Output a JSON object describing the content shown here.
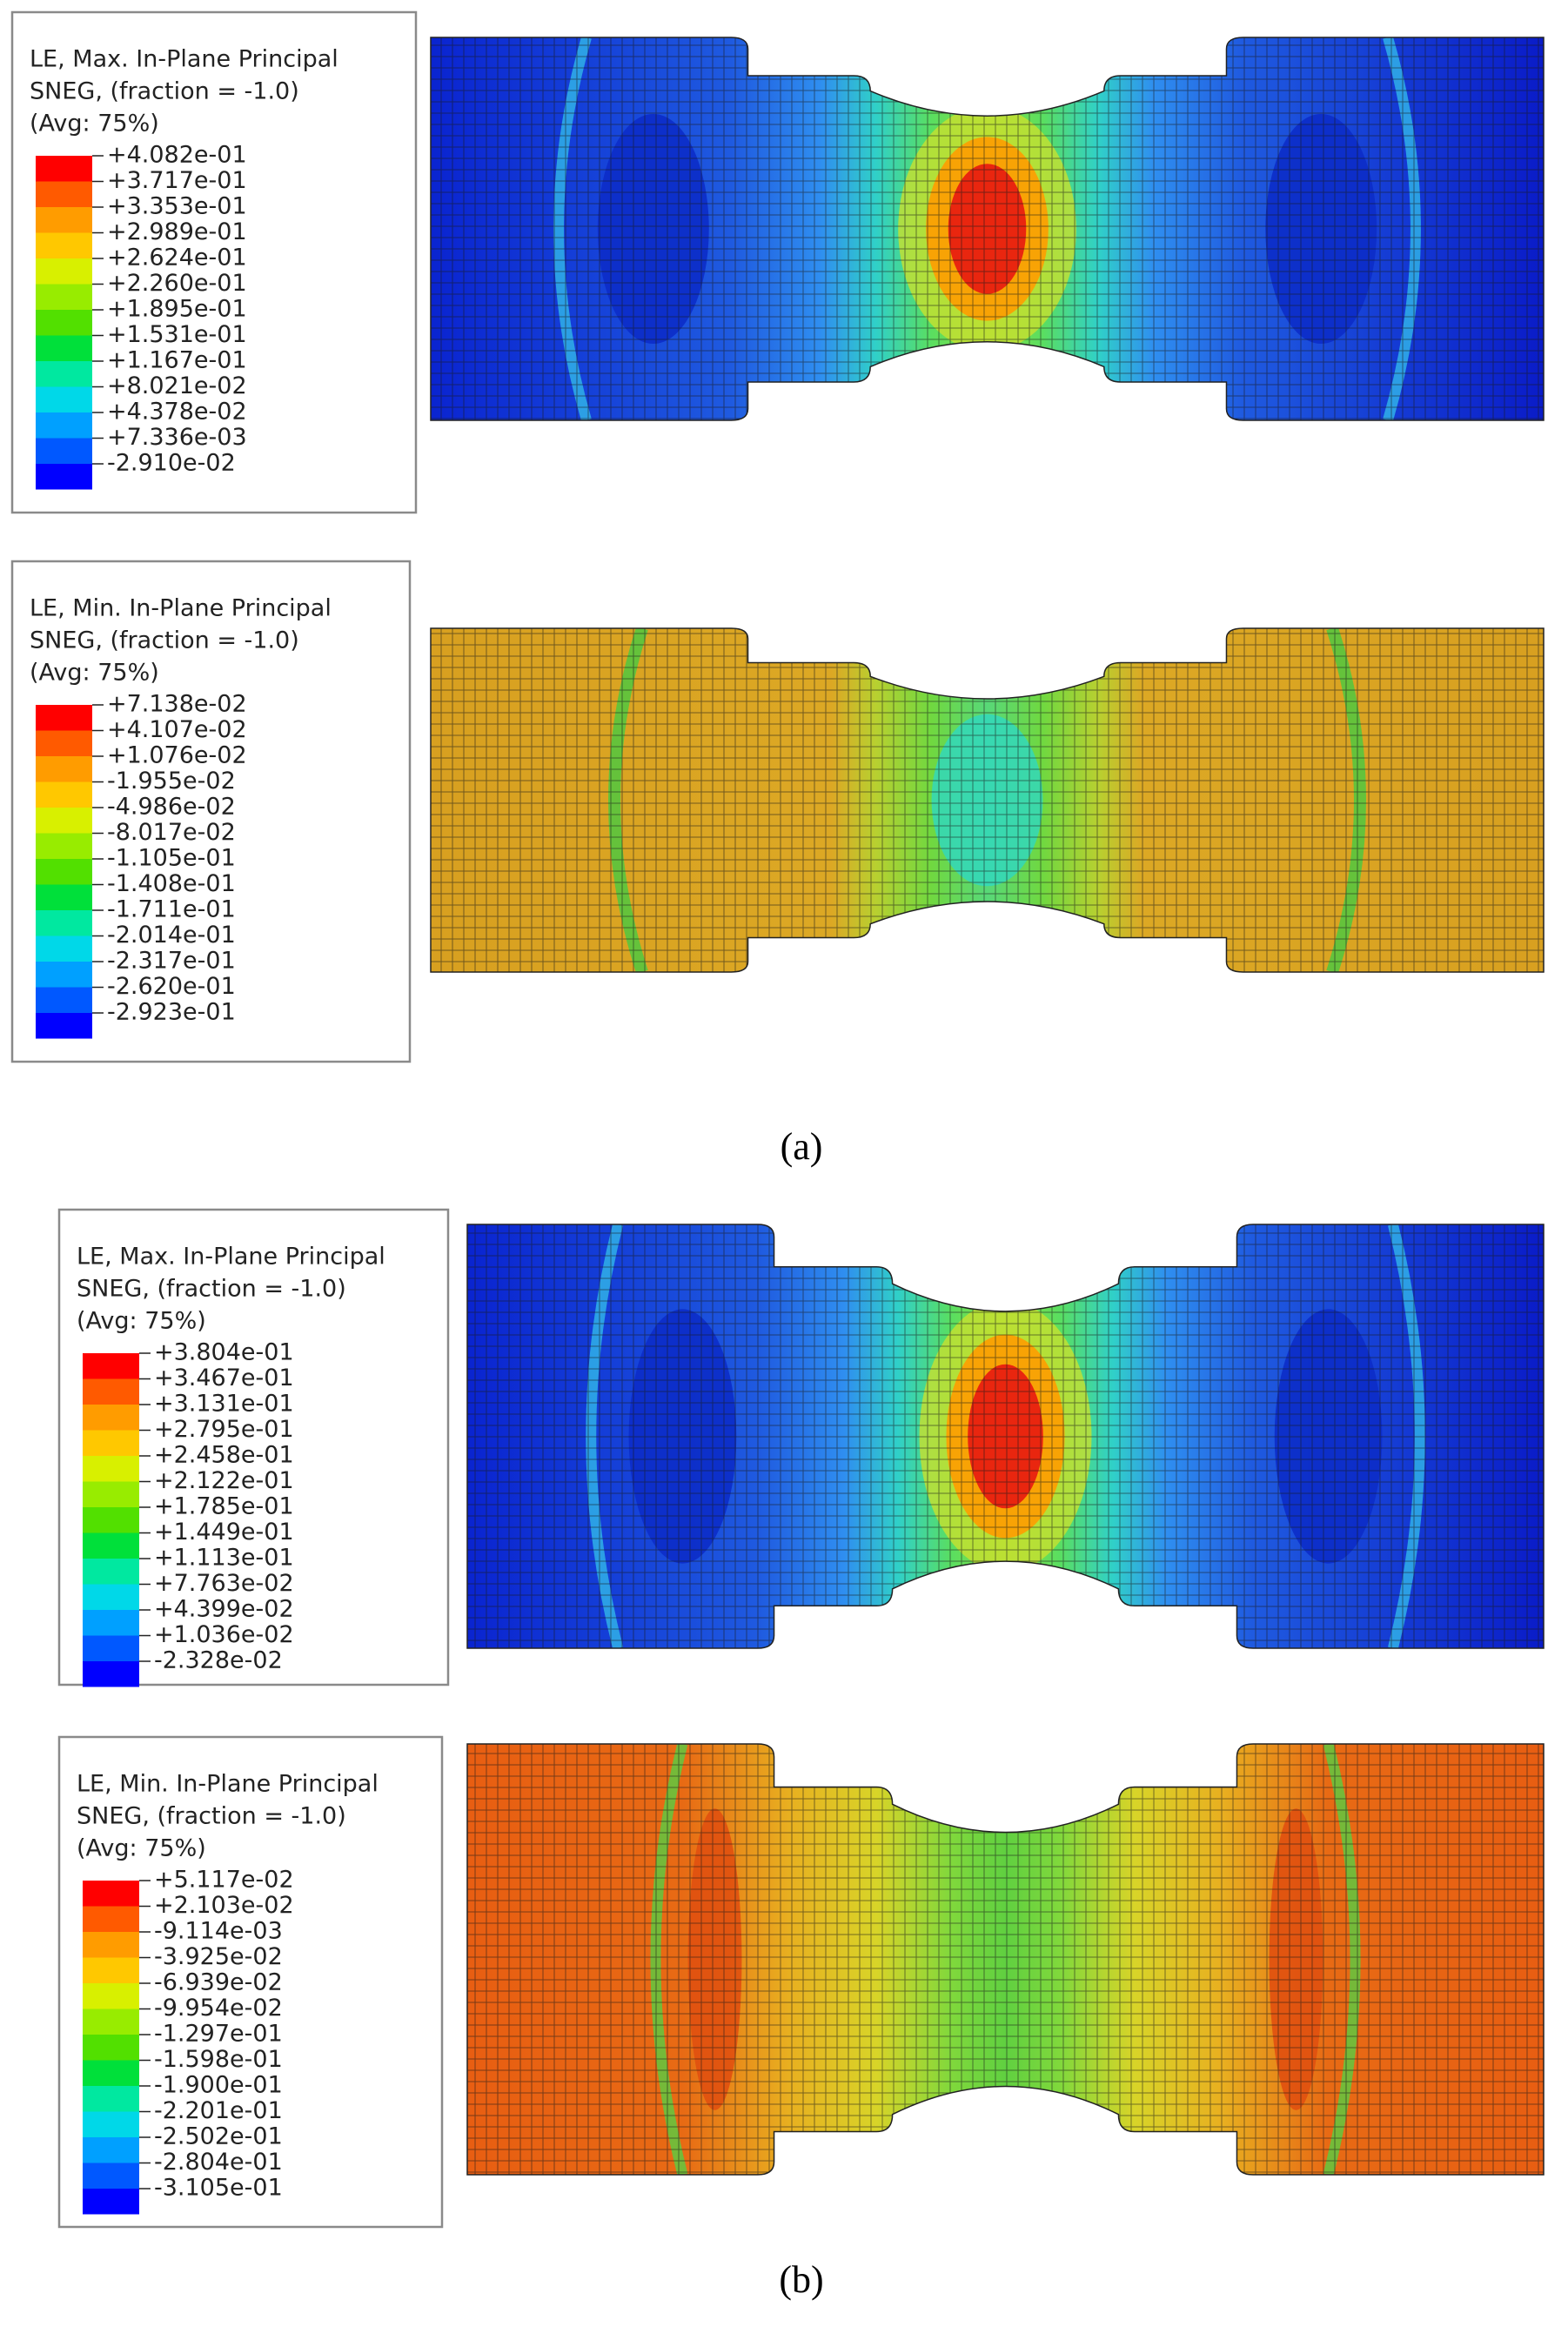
{
  "panels": [
    {
      "caption": "(a)",
      "plots": [
        {
          "legend": {
            "title": [
              "LE, Max. In-Plane Principal",
              "SNEG, (fraction = -1.0)",
              "(Avg: 75%)"
            ],
            "labels": [
              "+4.082e-01",
              "+3.717e-01",
              "+3.353e-01",
              "+2.989e-01",
              "+2.624e-01",
              "+2.260e-01",
              "+1.895e-01",
              "+1.531e-01",
              "+1.167e-01",
              "+8.021e-02",
              "+4.378e-02",
              "+7.336e-03",
              "-2.910e-02"
            ]
          }
        },
        {
          "legend": {
            "title": [
              "LE, Min. In-Plane Principal",
              "SNEG, (fraction = -1.0)",
              "(Avg: 75%)"
            ],
            "labels": [
              "+7.138e-02",
              "+4.107e-02",
              "+1.076e-02",
              "-1.955e-02",
              "-4.986e-02",
              "-8.017e-02",
              "-1.105e-01",
              "-1.408e-01",
              "-1.711e-01",
              "-2.014e-01",
              "-2.317e-01",
              "-2.620e-01",
              "-2.923e-01"
            ]
          }
        }
      ]
    },
    {
      "caption": "(b)",
      "plots": [
        {
          "legend": {
            "title": [
              "LE, Max. In-Plane Principal",
              "SNEG, (fraction = -1.0)",
              "(Avg: 75%)"
            ],
            "labels": [
              "+3.804e-01",
              "+3.467e-01",
              "+3.131e-01",
              "+2.795e-01",
              "+2.458e-01",
              "+2.122e-01",
              "+1.785e-01",
              "+1.449e-01",
              "+1.113e-01",
              "+7.763e-02",
              "+4.399e-02",
              "+1.036e-02",
              "-2.328e-02"
            ]
          }
        },
        {
          "legend": {
            "title": [
              "LE, Min. In-Plane Principal",
              "SNEG, (fraction = -1.0)",
              "(Avg: 75%)"
            ],
            "labels": [
              "+5.117e-02",
              "+2.103e-02",
              "-9.114e-03",
              "-3.925e-02",
              "-6.939e-02",
              "-9.954e-02",
              "-1.297e-01",
              "-1.598e-01",
              "-1.900e-01",
              "-2.201e-01",
              "-2.502e-01",
              "-2.804e-01",
              "-3.105e-01"
            ]
          }
        }
      ]
    }
  ]
}
